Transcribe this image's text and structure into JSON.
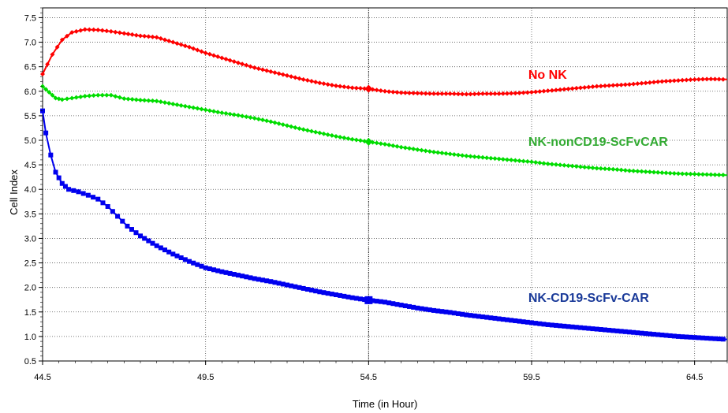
{
  "chart_data": {
    "type": "line",
    "title": "",
    "xlabel": "Time (in Hour)",
    "ylabel": "Cell Index",
    "xlim": [
      44.5,
      65.5
    ],
    "ylim": [
      0.5,
      7.7
    ],
    "x_ticks": [
      "44.5",
      "49.5",
      "54.5",
      "59.5",
      "64.5"
    ],
    "y_ticks": [
      "0.5",
      "1.0",
      "1.5",
      "2.0",
      "2.5",
      "3.0",
      "3.5",
      "4.0",
      "4.5",
      "5.0",
      "5.5",
      "6.0",
      "6.5",
      "7.0",
      "7.5"
    ],
    "grid": true,
    "reference_x": 54.5,
    "series": [
      {
        "name": "No NK",
        "color": "#ff0000",
        "marker": "diamond",
        "points": [
          [
            44.5,
            6.35
          ],
          [
            44.8,
            6.75
          ],
          [
            45.1,
            7.05
          ],
          [
            45.4,
            7.2
          ],
          [
            45.8,
            7.26
          ],
          [
            46.2,
            7.25
          ],
          [
            46.6,
            7.22
          ],
          [
            47.0,
            7.18
          ],
          [
            47.5,
            7.13
          ],
          [
            48.0,
            7.1
          ],
          [
            48.5,
            7.0
          ],
          [
            49.0,
            6.9
          ],
          [
            49.5,
            6.78
          ],
          [
            50.0,
            6.68
          ],
          [
            50.5,
            6.58
          ],
          [
            51.0,
            6.48
          ],
          [
            51.5,
            6.4
          ],
          [
            52.0,
            6.32
          ],
          [
            52.5,
            6.24
          ],
          [
            53.0,
            6.17
          ],
          [
            53.5,
            6.11
          ],
          [
            54.0,
            6.07
          ],
          [
            54.5,
            6.05
          ],
          [
            55.0,
            6.0
          ],
          [
            55.5,
            5.97
          ],
          [
            56.0,
            5.96
          ],
          [
            56.5,
            5.95
          ],
          [
            57.0,
            5.95
          ],
          [
            57.5,
            5.94
          ],
          [
            58.0,
            5.95
          ],
          [
            58.5,
            5.95
          ],
          [
            59.0,
            5.96
          ],
          [
            59.5,
            5.98
          ],
          [
            60.0,
            6.01
          ],
          [
            60.5,
            6.04
          ],
          [
            61.0,
            6.07
          ],
          [
            61.5,
            6.1
          ],
          [
            62.0,
            6.12
          ],
          [
            62.5,
            6.14
          ],
          [
            63.0,
            6.17
          ],
          [
            63.5,
            6.2
          ],
          [
            64.0,
            6.22
          ],
          [
            64.5,
            6.24
          ],
          [
            65.0,
            6.25
          ],
          [
            65.5,
            6.24
          ]
        ]
      },
      {
        "name": "NK-nonCD19-ScFvCAR",
        "color": "#00dd00",
        "marker": "diamond",
        "points": [
          [
            44.5,
            6.1
          ],
          [
            44.7,
            5.98
          ],
          [
            44.9,
            5.86
          ],
          [
            45.1,
            5.83
          ],
          [
            45.4,
            5.86
          ],
          [
            45.8,
            5.9
          ],
          [
            46.2,
            5.92
          ],
          [
            46.6,
            5.92
          ],
          [
            47.0,
            5.85
          ],
          [
            47.5,
            5.82
          ],
          [
            48.0,
            5.8
          ],
          [
            48.5,
            5.74
          ],
          [
            49.0,
            5.68
          ],
          [
            49.5,
            5.62
          ],
          [
            50.0,
            5.56
          ],
          [
            50.5,
            5.51
          ],
          [
            51.0,
            5.45
          ],
          [
            51.5,
            5.38
          ],
          [
            52.0,
            5.3
          ],
          [
            52.5,
            5.22
          ],
          [
            53.0,
            5.15
          ],
          [
            53.5,
            5.08
          ],
          [
            54.0,
            5.02
          ],
          [
            54.5,
            4.97
          ],
          [
            55.0,
            4.92
          ],
          [
            55.5,
            4.86
          ],
          [
            56.0,
            4.81
          ],
          [
            56.5,
            4.76
          ],
          [
            57.0,
            4.72
          ],
          [
            57.5,
            4.68
          ],
          [
            58.0,
            4.65
          ],
          [
            58.5,
            4.62
          ],
          [
            59.0,
            4.59
          ],
          [
            59.5,
            4.56
          ],
          [
            60.0,
            4.52
          ],
          [
            60.5,
            4.49
          ],
          [
            61.0,
            4.46
          ],
          [
            61.5,
            4.43
          ],
          [
            62.0,
            4.41
          ],
          [
            62.5,
            4.38
          ],
          [
            63.0,
            4.36
          ],
          [
            63.5,
            4.34
          ],
          [
            64.0,
            4.32
          ],
          [
            64.5,
            4.31
          ],
          [
            65.0,
            4.3
          ],
          [
            65.5,
            4.29
          ]
        ]
      },
      {
        "name": "NK-CD19-ScFv-CAR",
        "color": "#0000ee",
        "marker": "square",
        "points": [
          [
            44.5,
            5.6
          ],
          [
            44.6,
            5.15
          ],
          [
            44.75,
            4.7
          ],
          [
            44.9,
            4.35
          ],
          [
            45.1,
            4.12
          ],
          [
            45.3,
            4.0
          ],
          [
            45.6,
            3.95
          ],
          [
            45.9,
            3.88
          ],
          [
            46.2,
            3.8
          ],
          [
            46.5,
            3.65
          ],
          [
            46.8,
            3.45
          ],
          [
            47.1,
            3.25
          ],
          [
            47.5,
            3.05
          ],
          [
            48.0,
            2.85
          ],
          [
            48.5,
            2.68
          ],
          [
            49.0,
            2.53
          ],
          [
            49.5,
            2.4
          ],
          [
            50.0,
            2.32
          ],
          [
            50.5,
            2.25
          ],
          [
            51.0,
            2.18
          ],
          [
            51.5,
            2.12
          ],
          [
            52.0,
            2.05
          ],
          [
            52.5,
            1.98
          ],
          [
            53.0,
            1.91
          ],
          [
            53.5,
            1.85
          ],
          [
            54.0,
            1.79
          ],
          [
            54.5,
            1.74
          ],
          [
            55.0,
            1.7
          ],
          [
            55.5,
            1.64
          ],
          [
            56.0,
            1.58
          ],
          [
            56.5,
            1.53
          ],
          [
            57.0,
            1.49
          ],
          [
            57.5,
            1.44
          ],
          [
            58.0,
            1.4
          ],
          [
            58.5,
            1.36
          ],
          [
            59.0,
            1.32
          ],
          [
            59.5,
            1.28
          ],
          [
            60.0,
            1.24
          ],
          [
            60.5,
            1.21
          ],
          [
            61.0,
            1.18
          ],
          [
            61.5,
            1.15
          ],
          [
            62.0,
            1.12
          ],
          [
            62.5,
            1.09
          ],
          [
            63.0,
            1.06
          ],
          [
            63.5,
            1.03
          ],
          [
            64.0,
            1.0
          ],
          [
            64.5,
            0.98
          ],
          [
            65.0,
            0.96
          ],
          [
            65.5,
            0.94
          ]
        ]
      }
    ],
    "annotations": [
      {
        "text": "No NK",
        "color": "#ff0000",
        "x": 59.4,
        "y": 6.35
      },
      {
        "text": "NK-nonCD19-ScFvCAR",
        "color": "#33aa33",
        "x": 59.4,
        "y": 4.98
      },
      {
        "text": "NK-CD19-ScFv-CAR",
        "color": "#1a3a99",
        "x": 59.4,
        "y": 1.8
      }
    ]
  }
}
